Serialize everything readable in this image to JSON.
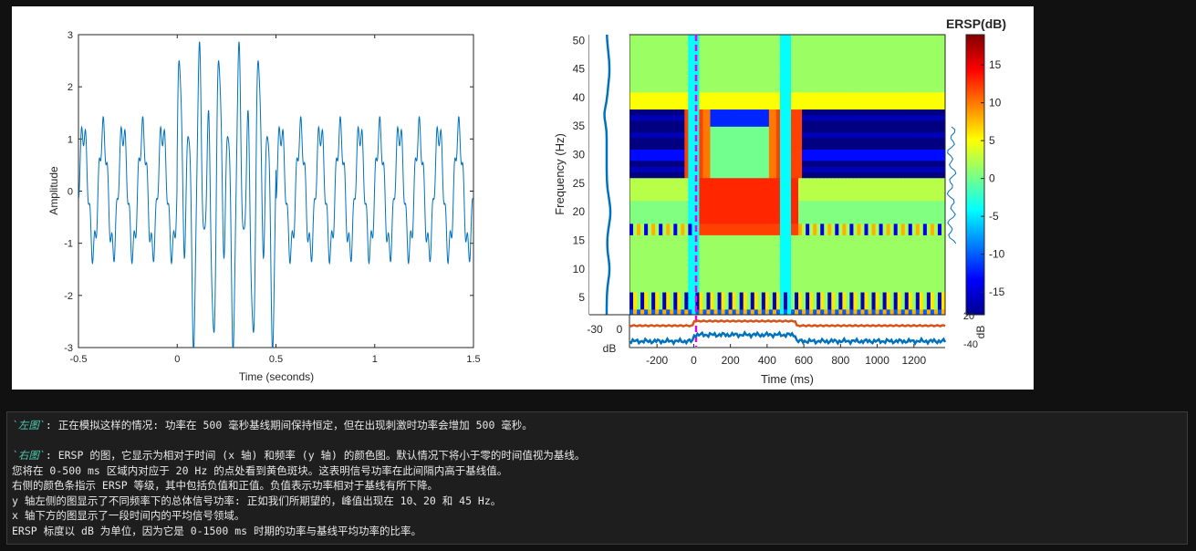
{
  "left_chart": {
    "title": "",
    "xlabel": "Time (seconds)",
    "ylabel": "Amplitude",
    "xlim": [
      -0.5,
      1.5
    ],
    "ylim": [
      -3,
      3
    ],
    "xticks": [
      "-0.5",
      "0",
      "0.5",
      "1",
      "1.5"
    ],
    "yticks": [
      "3",
      "2",
      "1",
      "0",
      "-1",
      "-2",
      "-3"
    ],
    "line_color": "#0072bd"
  },
  "right_chart": {
    "title": "ERSP(dB)",
    "xlabel": "Time (ms)",
    "ylabel": "Frequency (Hz)",
    "xticks": [
      "-200",
      "0",
      "200",
      "400",
      "600",
      "800",
      "1000",
      "1200"
    ],
    "yticks": [
      "50",
      "45",
      "40",
      "35",
      "30",
      "25",
      "20",
      "15",
      "10",
      "5"
    ],
    "colorbar_ticks": [
      "15",
      "10",
      "5",
      "0",
      "-5",
      "-10",
      "-15"
    ],
    "colorbar_unit": "dB",
    "left_power_ticks": [
      "-30",
      "0"
    ],
    "left_power_unit": "dB",
    "bottom_right_ticks": [
      "20",
      "-40"
    ],
    "marker_color": "#e600e6",
    "trace_blue": "#0072bd",
    "trace_orange": "#d95319"
  },
  "chart_data": [
    {
      "type": "line",
      "xlabel": "Time (seconds)",
      "ylabel": "Amplitude",
      "xlim": [
        -0.5,
        1.5
      ],
      "ylim": [
        -3,
        3
      ],
      "series": [
        {
          "x": [
            -0.5,
            -0.45,
            -0.4,
            -0.35,
            -0.3,
            -0.25,
            -0.2,
            -0.15,
            -0.1,
            -0.05,
            0,
            0.05,
            0.1,
            0.15,
            0.2,
            0.25,
            0.3,
            0.35,
            0.4,
            0.45,
            0.5,
            0.55,
            0.6,
            0.65,
            0.7,
            0.75,
            0.8,
            0.85,
            0.9,
            0.95,
            1.0,
            1.05,
            1.1,
            1.15,
            1.2,
            1.25,
            1.3,
            1.35,
            1.4,
            1.45,
            1.5
          ],
          "y": [
            0.6,
            -1.2,
            1.6,
            -1.4,
            1.2,
            -0.8,
            1.6,
            -1.5,
            1.3,
            -1.2,
            0.5,
            2.7,
            -2.8,
            2.2,
            -2.5,
            2.8,
            -2.3,
            2.6,
            -2.9,
            2.4,
            -0.6,
            1.5,
            -1.4,
            1.6,
            -1.2,
            1.4,
            -1.5,
            1.6,
            -1.1,
            1.5,
            -1.4,
            1.6,
            -1.3,
            1.5,
            -1.5,
            1.6,
            -1.2,
            1.5,
            -1.4,
            1.6,
            -0.3
          ]
        }
      ]
    },
    {
      "type": "heatmap",
      "title": "ERSP(dB)",
      "xlabel": "Time (ms)",
      "ylabel": "Frequency (Hz)",
      "xlim": [
        -350,
        1370
      ],
      "ylim": [
        2,
        51
      ],
      "colorbar_range": [
        -18,
        19
      ],
      "stimulus_onset_ms": 0
    }
  ],
  "caption": {
    "line1_tag": "`左图`",
    "line1_text": ": 正在模拟这样的情况: 功率在 500 毫秒基线期间保持恒定，但在出现刺激时功率会增加 500 毫秒。",
    "line2_tag": "`右图`",
    "line2_text": ": ERSP 的图，它显示为相对于时间 (x 轴) 和频率 (y 轴) 的颜色图。默认情况下将小于零的时间值视为基线。",
    "line3": "您将在 0-500 ms 区域内对应于 20 Hz 的点处看到黄色斑块。这表明信号功率在此间隔内高于基线值。",
    "line4": "右侧的颜色条指示 ERSP 等级，其中包括负值和正值。负值表示功率相对于基线有所下降。",
    "line5": "y 轴左侧的图显示了不同频率下的总体信号功率: 正如我们所期望的，峰值出现在 10、20 和 45 Hz。",
    "line6": "x 轴下方的图显示了一段时间内的平均信号领域。",
    "line7": "ERSP 标度以 dB 为单位，因为它是 0-1500 ms 时期的功率与基线平均功率的比率。"
  }
}
